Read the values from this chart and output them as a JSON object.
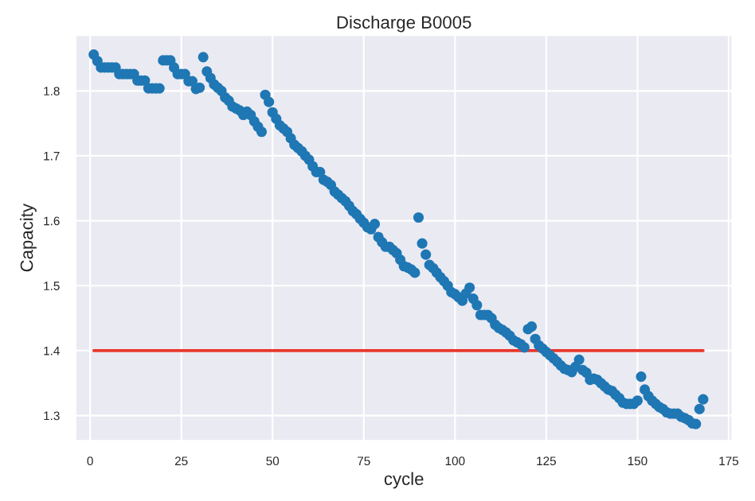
{
  "chart_data": {
    "type": "scatter",
    "title": "Discharge B0005",
    "xlabel": "cycle",
    "ylabel": "Capacity",
    "xlim": [
      -4,
      176
    ],
    "ylim": [
      1.261,
      1.886
    ],
    "xticks": [
      0,
      25,
      50,
      75,
      100,
      125,
      150,
      175
    ],
    "yticks": [
      1.3,
      1.4,
      1.5,
      1.6,
      1.7,
      1.8
    ],
    "grid": true,
    "series": [
      {
        "marker": "circle",
        "color": "#1f77b4",
        "x": [
          1,
          2,
          3,
          4,
          5,
          6,
          7,
          8,
          9,
          10,
          11,
          12,
          13,
          14,
          15,
          16,
          17,
          18,
          19,
          20,
          21,
          22,
          23,
          24,
          25,
          26,
          27,
          28,
          29,
          30,
          31,
          32,
          33,
          34,
          35,
          36,
          37,
          38,
          39,
          40,
          41,
          42,
          43,
          44,
          45,
          46,
          47,
          48,
          49,
          50,
          51,
          52,
          53,
          54,
          55,
          56,
          57,
          58,
          59,
          60,
          61,
          62,
          63,
          64,
          65,
          66,
          67,
          68,
          69,
          70,
          71,
          72,
          73,
          74,
          75,
          76,
          77,
          78,
          79,
          80,
          81,
          82,
          83,
          84,
          85,
          86,
          87,
          88,
          89,
          90,
          91,
          92,
          93,
          94,
          95,
          96,
          97,
          98,
          99,
          100,
          101,
          102,
          103,
          104,
          105,
          106,
          107,
          108,
          109,
          110,
          111,
          112,
          113,
          114,
          115,
          116,
          117,
          118,
          119,
          120,
          121,
          122,
          123,
          124,
          125,
          126,
          127,
          128,
          129,
          130,
          131,
          132,
          133,
          134,
          135,
          136,
          137,
          138,
          139,
          140,
          141,
          142,
          143,
          144,
          145,
          146,
          147,
          148,
          149,
          150,
          151,
          152,
          153,
          154,
          155,
          156,
          157,
          158,
          159,
          160,
          161,
          162,
          163,
          164,
          165,
          166,
          167,
          168
        ],
        "values": [
          1.856,
          1.846,
          1.836,
          1.836,
          1.836,
          1.836,
          1.836,
          1.826,
          1.826,
          1.826,
          1.826,
          1.826,
          1.816,
          1.816,
          1.816,
          1.804,
          1.804,
          1.804,
          1.804,
          1.847,
          1.847,
          1.847,
          1.836,
          1.826,
          1.826,
          1.826,
          1.815,
          1.815,
          1.803,
          1.805,
          1.852,
          1.83,
          1.82,
          1.81,
          1.805,
          1.8,
          1.79,
          1.785,
          1.776,
          1.773,
          1.77,
          1.763,
          1.768,
          1.763,
          1.753,
          1.745,
          1.737,
          1.794,
          1.783,
          1.767,
          1.757,
          1.747,
          1.742,
          1.737,
          1.727,
          1.717,
          1.712,
          1.707,
          1.7,
          1.694,
          1.684,
          1.675,
          1.675,
          1.663,
          1.66,
          1.655,
          1.645,
          1.64,
          1.635,
          1.63,
          1.623,
          1.615,
          1.61,
          1.603,
          1.597,
          1.59,
          1.587,
          1.595,
          1.575,
          1.567,
          1.56,
          1.56,
          1.555,
          1.55,
          1.54,
          1.53,
          1.528,
          1.525,
          1.52,
          1.605,
          1.565,
          1.548,
          1.532,
          1.527,
          1.52,
          1.513,
          1.507,
          1.5,
          1.49,
          1.487,
          1.482,
          1.477,
          1.488,
          1.497,
          1.48,
          1.47,
          1.455,
          1.455,
          1.455,
          1.45,
          1.44,
          1.435,
          1.432,
          1.428,
          1.423,
          1.416,
          1.413,
          1.41,
          1.405,
          1.433,
          1.437,
          1.418,
          1.408,
          1.403,
          1.398,
          1.393,
          1.388,
          1.383,
          1.377,
          1.372,
          1.37,
          1.367,
          1.375,
          1.386,
          1.37,
          1.366,
          1.355,
          1.357,
          1.355,
          1.35,
          1.345,
          1.34,
          1.338,
          1.332,
          1.327,
          1.32,
          1.318,
          1.318,
          1.318,
          1.323,
          1.36,
          1.34,
          1.33,
          1.323,
          1.318,
          1.313,
          1.31,
          1.305,
          1.303,
          1.303,
          1.303,
          1.298,
          1.296,
          1.293,
          1.288,
          1.287,
          1.31,
          1.325
        ]
      },
      {
        "type": "line",
        "color": "#e8372c",
        "x": [
          1,
          168
        ],
        "values": [
          1.4,
          1.4
        ]
      }
    ]
  }
}
